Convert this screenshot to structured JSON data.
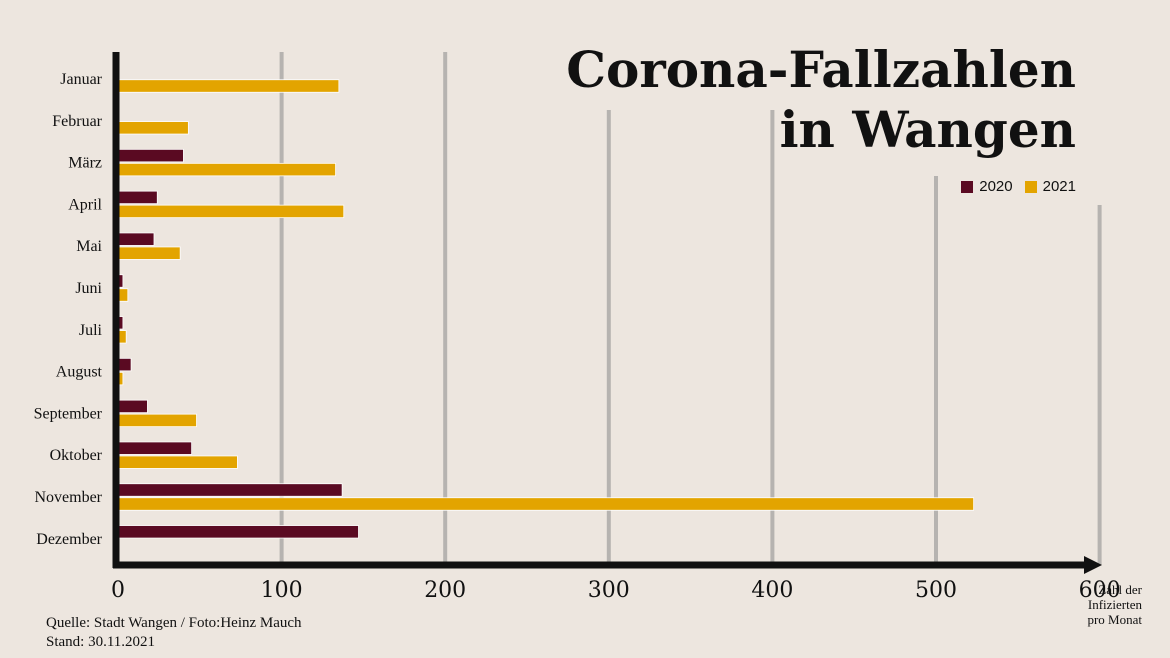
{
  "chart_data": {
    "type": "bar",
    "orientation": "horizontal",
    "title": [
      "Corona-Fallzahlen",
      "in Wangen"
    ],
    "categories": [
      "Januar",
      "Februar",
      "März",
      "April",
      "Mai",
      "Juni",
      "Juli",
      "August",
      "September",
      "Oktober",
      "November",
      "Dezember"
    ],
    "series": [
      {
        "name": "2020",
        "color": "#5a0a22",
        "values": [
          null,
          null,
          40,
          24,
          22,
          3,
          3,
          8,
          18,
          45,
          137,
          147
        ]
      },
      {
        "name": "2021",
        "color": "#e3a400",
        "values": [
          135,
          43,
          133,
          138,
          38,
          6,
          5,
          3,
          48,
          73,
          523,
          null
        ]
      }
    ],
    "xlabel": [
      "Zahl der",
      "Infizierten",
      "pro Monat"
    ],
    "ylabel": "",
    "xlim": [
      0,
      600
    ],
    "xticks": [
      0,
      100,
      200,
      300,
      400,
      500,
      600
    ],
    "grid": true,
    "legend_position": "top-right"
  },
  "footer": {
    "source": "Quelle: Stadt Wangen / Foto:Heinz Mauch",
    "date": "Stand: 30.11.2021"
  },
  "colors": {
    "axis": "#111111",
    "gridline": "#888888",
    "background": "#ede6df"
  }
}
